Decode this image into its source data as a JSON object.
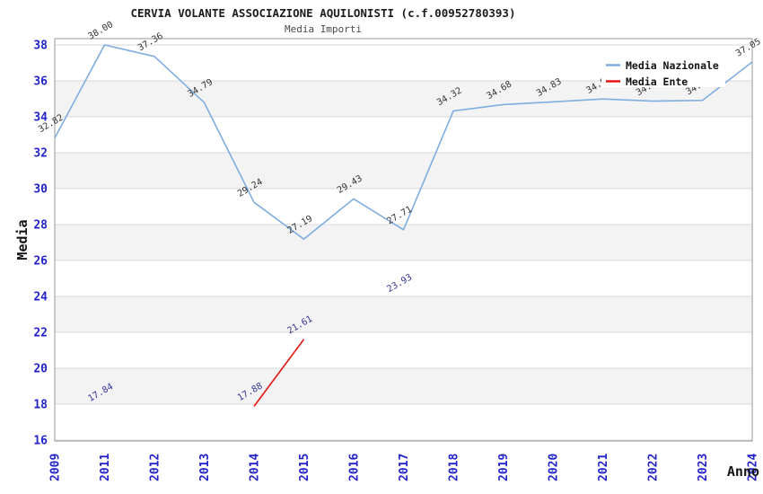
{
  "chart_data": {
    "type": "line",
    "title": "CERVIA VOLANTE ASSOCIAZIONE AQUILONISTI (c.f.00952780393)",
    "subtitle": "Media Importi",
    "xlabel": "Anno",
    "ylabel": "Media",
    "categories": [
      "2009",
      "2011",
      "2012",
      "2013",
      "2014",
      "2015",
      "2016",
      "2017",
      "2018",
      "2019",
      "2020",
      "2021",
      "2022",
      "2023",
      "2024"
    ],
    "yticks": [
      16,
      18,
      20,
      22,
      24,
      26,
      28,
      30,
      32,
      34,
      36,
      38
    ],
    "ylim": [
      15.95,
      38.35
    ],
    "grid": "horizontal gridlines with alternating gray bands",
    "legend_position": "top-right",
    "series": [
      {
        "name": "Media Nazionale",
        "color": "#7fade0",
        "label_color": "#333333",
        "values": [
          32.82,
          38.0,
          37.36,
          34.79,
          29.24,
          27.19,
          29.43,
          27.71,
          34.32,
          34.68,
          34.83,
          34.99,
          34.87,
          34.91,
          37.05
        ]
      },
      {
        "name": "Media Ente",
        "color": "#e41414",
        "label_color": "#333399",
        "values": [
          null,
          17.84,
          null,
          null,
          17.88,
          21.61,
          null,
          23.93,
          null,
          null,
          null,
          null,
          null,
          null,
          null
        ]
      }
    ],
    "occluded_labels": {
      "series": "Media Nazionale",
      "categories": [
        "2021",
        "2022",
        "2023"
      ],
      "note": "labels hidden behind legend box; values estimated from line position"
    },
    "band_color": "#f3f3f3",
    "grid_color": "#d9d9d9",
    "border_color": "#979797",
    "tick_color": "#2323cc"
  }
}
